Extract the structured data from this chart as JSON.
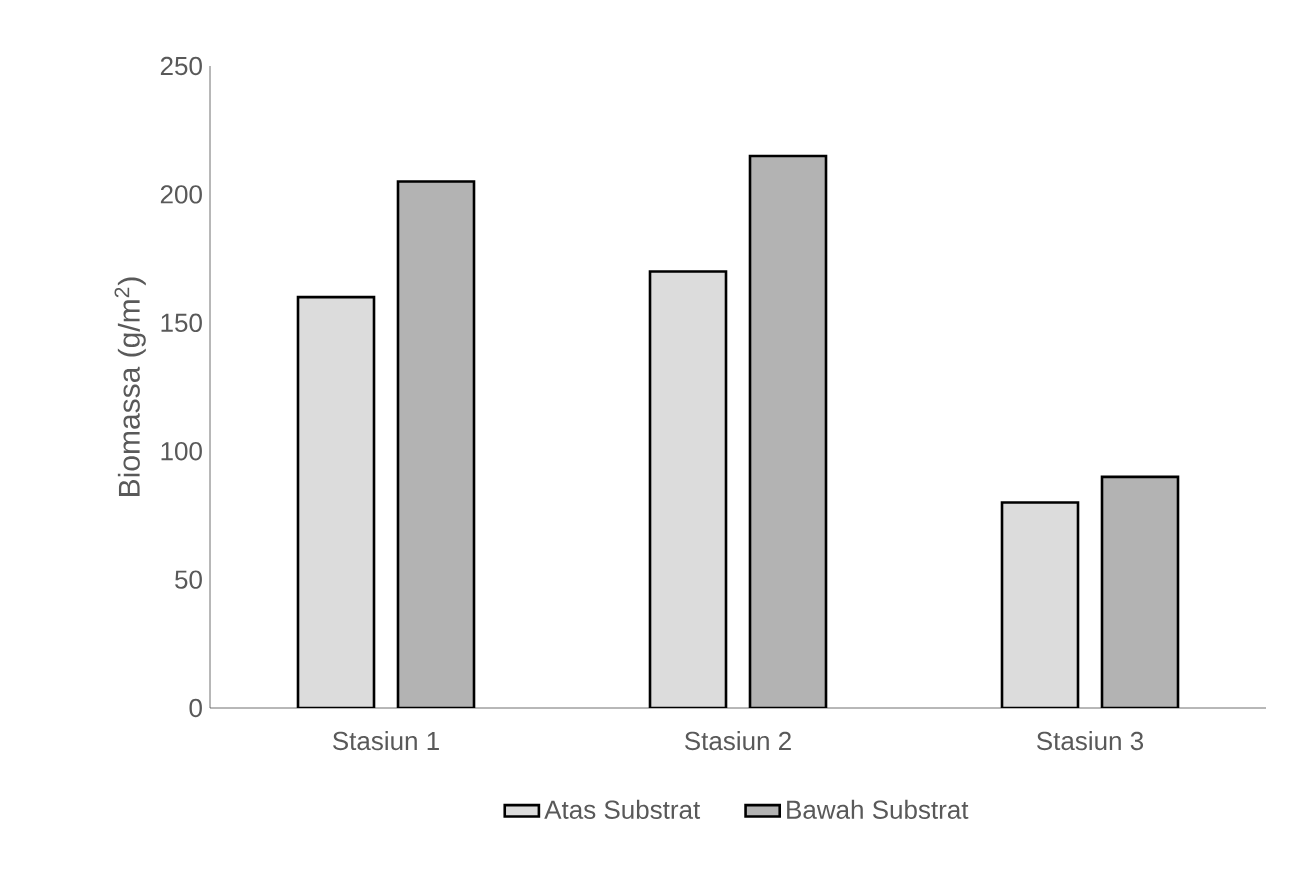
{
  "chart_data": {
    "type": "bar",
    "ylabel": "Biomassa (g/m$^{2}$)",
    "categories": [
      "Stasiun 1",
      "Stasiun 2",
      "Stasiun 3"
    ],
    "series": [
      {
        "name": "Atas Substrat",
        "color": "#dcdcdc",
        "values": [
          160,
          170,
          80
        ]
      },
      {
        "name": "Bawah Substrat",
        "color": "#b3b3b3",
        "values": [
          205,
          215,
          90
        ]
      }
    ],
    "ylim": [
      0,
      250
    ],
    "yticks": [
      0,
      50,
      100,
      150,
      200,
      250
    ],
    "grid": false,
    "legend": "bottom"
  }
}
